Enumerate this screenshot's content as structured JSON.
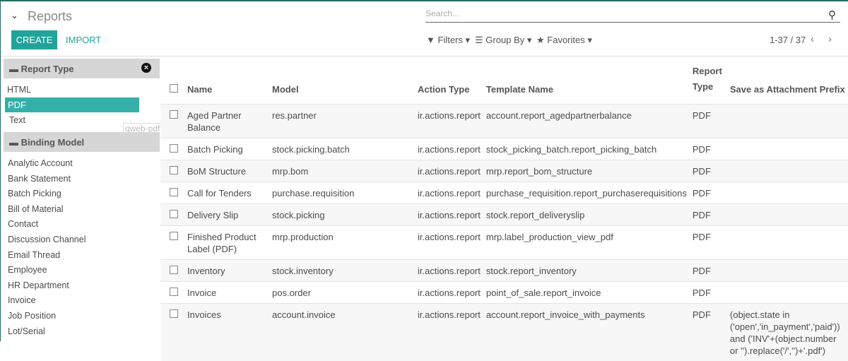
{
  "header": {
    "title": "Reports",
    "create": "CREATE",
    "import": "IMPORT",
    "search_placeholder": "Search...",
    "filters": "Filters",
    "group_by": "Group By",
    "favorites": "Favorites",
    "pager": "1-37 / 37"
  },
  "sidebar": {
    "report_type": {
      "title": "Report Type",
      "items": [
        "HTML",
        "PDF",
        "Text"
      ],
      "selected": "PDF",
      "tooltip": "qweb-pdf"
    },
    "binding_model": {
      "title": "Binding Model",
      "items": [
        "Analytic Account",
        "Bank Statement",
        "Batch Picking",
        "Bill of Material",
        "Contact",
        "Discussion Channel",
        "Email Thread",
        "Employee",
        "HR Department",
        "Invoice",
        "Job Position",
        "Lot/Serial"
      ]
    }
  },
  "table": {
    "columns": [
      "Name",
      "Model",
      "Action Type",
      "Template Name",
      "Report Type",
      "Save as Attachment Prefix"
    ],
    "rows": [
      [
        "Aged Partner Balance",
        "res.partner",
        "ir.actions.report",
        "account.report_agedpartnerbalance",
        "PDF",
        ""
      ],
      [
        "Batch Picking",
        "stock.picking.batch",
        "ir.actions.report",
        "stock_picking_batch.report_picking_batch",
        "PDF",
        ""
      ],
      [
        "BoM Structure",
        "mrp.bom",
        "ir.actions.report",
        "mrp.report_bom_structure",
        "PDF",
        ""
      ],
      [
        "Call for Tenders",
        "purchase.requisition",
        "ir.actions.report",
        "purchase_requisition.report_purchaserequisitions",
        "PDF",
        ""
      ],
      [
        "Delivery Slip",
        "stock.picking",
        "ir.actions.report",
        "stock.report_deliveryslip",
        "PDF",
        ""
      ],
      [
        "Finished Product Label (PDF)",
        "mrp.production",
        "ir.actions.report",
        "mrp.label_production_view_pdf",
        "PDF",
        ""
      ],
      [
        "Inventory",
        "stock.inventory",
        "ir.actions.report",
        "stock.report_inventory",
        "PDF",
        ""
      ],
      [
        "Invoice",
        "pos.order",
        "ir.actions.report",
        "point_of_sale.report_invoice",
        "PDF",
        ""
      ],
      [
        "Invoices",
        "account.invoice",
        "ir.actions.report",
        "account.report_invoice_with_payments",
        "PDF",
        "(object.state in ('open','in_payment','paid')) and ('INV'+(object.number or '').replace('/','')+'.pdf')"
      ]
    ]
  }
}
